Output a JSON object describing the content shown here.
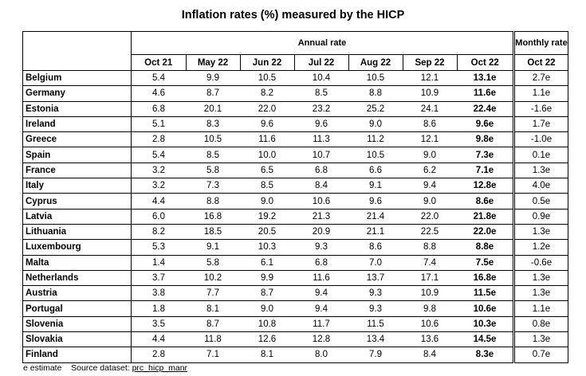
{
  "title": "Inflation rates (%) measured by the HICP",
  "annual_header": "Annual rate",
  "monthly_header": "Monthly rate",
  "annual_columns": [
    "Oct 21",
    "May 22",
    "Jun 22",
    "Jul 22",
    "Aug 22",
    "Sep 22",
    "Oct 22"
  ],
  "monthly_column": "Oct 22",
  "rows": [
    {
      "country": "Belgium",
      "values": [
        "5.4",
        "9.9",
        "10.5",
        "10.4",
        "10.5",
        "12.1",
        "13.1e"
      ],
      "monthly": "2.7e"
    },
    {
      "country": "Germany",
      "values": [
        "4.6",
        "8.7",
        "8.2",
        "8.5",
        "8.8",
        "10.9",
        "11.6e"
      ],
      "monthly": "1.1e"
    },
    {
      "country": "Estonia",
      "values": [
        "6.8",
        "20.1",
        "22.0",
        "23.2",
        "25.2",
        "24.1",
        "22.4e"
      ],
      "monthly": "-1.6e"
    },
    {
      "country": "Ireland",
      "values": [
        "5.1",
        "8.3",
        "9.6",
        "9.6",
        "9.0",
        "8.6",
        "9.6e"
      ],
      "monthly": "1.7e"
    },
    {
      "country": "Greece",
      "values": [
        "2.8",
        "10.5",
        "11.6",
        "11.3",
        "11.2",
        "12.1",
        "9.8e"
      ],
      "monthly": "-1.0e"
    },
    {
      "country": "Spain",
      "values": [
        "5.4",
        "8.5",
        "10.0",
        "10.7",
        "10.5",
        "9.0",
        "7.3e"
      ],
      "monthly": "0.1e"
    },
    {
      "country": "France",
      "values": [
        "3.2",
        "5.8",
        "6.5",
        "6.8",
        "6.6",
        "6.2",
        "7.1e"
      ],
      "monthly": "1.3e"
    },
    {
      "country": "Italy",
      "values": [
        "3.2",
        "7.3",
        "8.5",
        "8.4",
        "9.1",
        "9.4",
        "12.8e"
      ],
      "monthly": "4.0e"
    },
    {
      "country": "Cyprus",
      "values": [
        "4.4",
        "8.8",
        "9.0",
        "10.6",
        "9.6",
        "9.0",
        "8.6e"
      ],
      "monthly": "0.5e"
    },
    {
      "country": "Latvia",
      "values": [
        "6.0",
        "16.8",
        "19.2",
        "21.3",
        "21.4",
        "22.0",
        "21.8e"
      ],
      "monthly": "0.9e"
    },
    {
      "country": "Lithuania",
      "values": [
        "8.2",
        "18.5",
        "20.5",
        "20.9",
        "21.1",
        "22.5",
        "22.0e"
      ],
      "monthly": "1.3e"
    },
    {
      "country": "Luxembourg",
      "values": [
        "5.3",
        "9.1",
        "10.3",
        "9.3",
        "8.6",
        "8.8",
        "8.8e"
      ],
      "monthly": "1.2e"
    },
    {
      "country": "Malta",
      "values": [
        "1.4",
        "5.8",
        "6.1",
        "6.8",
        "7.0",
        "7.4",
        "7.5e"
      ],
      "monthly": "-0.6e"
    },
    {
      "country": "Netherlands",
      "values": [
        "3.7",
        "10.2",
        "9.9",
        "11.6",
        "13.7",
        "17.1",
        "16.8e"
      ],
      "monthly": "1.3e"
    },
    {
      "country": "Austria",
      "values": [
        "3.8",
        "7.7",
        "8.7",
        "9.4",
        "9.3",
        "10.9",
        "11.5e"
      ],
      "monthly": "1.3e"
    },
    {
      "country": "Portugal",
      "values": [
        "1.8",
        "8.1",
        "9.0",
        "9.4",
        "9.3",
        "9.8",
        "10.6e"
      ],
      "monthly": "1.1e"
    },
    {
      "country": "Slovenia",
      "values": [
        "3.5",
        "8.7",
        "10.8",
        "11.7",
        "11.5",
        "10.6",
        "10.3e"
      ],
      "monthly": "0.8e"
    },
    {
      "country": "Slovakia",
      "values": [
        "4.4",
        "11.8",
        "12.6",
        "12.8",
        "13.4",
        "13.6",
        "14.5e"
      ],
      "monthly": "1.3e"
    },
    {
      "country": "Finland",
      "values": [
        "2.8",
        "7.1",
        "8.1",
        "8.0",
        "7.9",
        "8.4",
        "8.3e"
      ],
      "monthly": "0.7e"
    }
  ],
  "footer": {
    "note": "e estimate",
    "source_label": "Source dataset:",
    "source_link": "prc_hicp_manr"
  }
}
